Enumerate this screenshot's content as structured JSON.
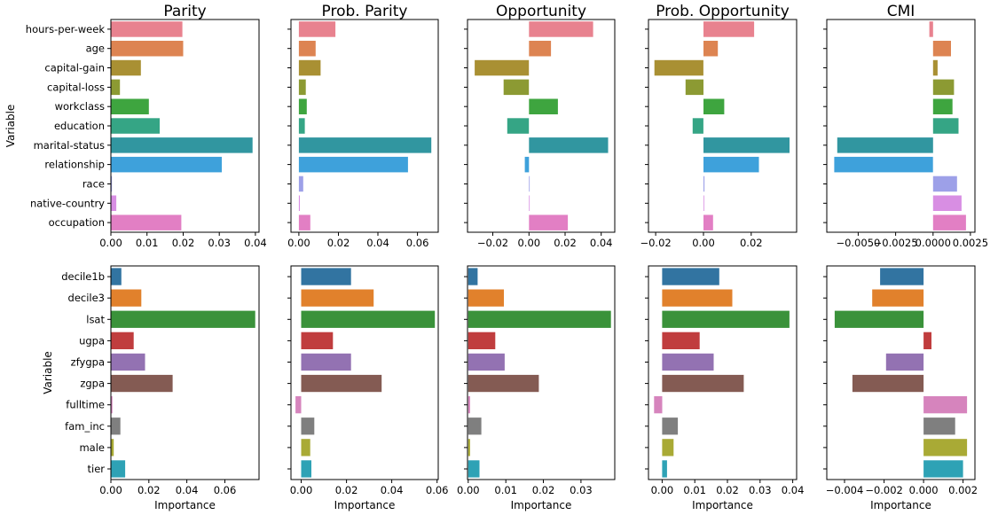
{
  "chart_data": [
    {
      "type": "bar",
      "orientation": "horizontal",
      "title": "Parity",
      "xlabel": "",
      "ylabel": "Variable",
      "categories": [
        "hours-per-week",
        "age",
        "capital-gain",
        "capital-loss",
        "workclass",
        "education",
        "marital-status",
        "relationship",
        "race",
        "native-country",
        "occupation"
      ],
      "values": [
        0.0198,
        0.02,
        0.0083,
        0.0025,
        0.0105,
        0.0135,
        0.0392,
        0.0307,
        0.0003,
        0.0015,
        0.0195
      ],
      "colors": [
        "#e8828f",
        "#dd8452",
        "#a99033",
        "#8c9a33",
        "#3ea53f",
        "#35a585",
        "#3196a0",
        "#3ea1db",
        "#9da0e8",
        "#d88ee3",
        "#e27fc4"
      ],
      "xlim": [
        0,
        0.041
      ],
      "xticks": [
        0,
        0.01,
        0.02,
        0.03,
        0.04
      ],
      "xticklabels": [
        "0.00",
        "0.01",
        "0.02",
        "0.03",
        "0.04"
      ]
    },
    {
      "type": "bar",
      "orientation": "horizontal",
      "title": "Prob. Parity",
      "xlabel": "",
      "ylabel": "",
      "categories": [
        "hours-per-week",
        "age",
        "capital-gain",
        "capital-loss",
        "workclass",
        "education",
        "marital-status",
        "relationship",
        "race",
        "native-country",
        "occupation"
      ],
      "values": [
        0.0185,
        0.0085,
        0.011,
        0.0035,
        0.004,
        0.003,
        0.067,
        0.0552,
        0.0022,
        0.0005,
        0.0058
      ],
      "colors": [
        "#e8828f",
        "#dd8452",
        "#a99033",
        "#8c9a33",
        "#3ea53f",
        "#35a585",
        "#3196a0",
        "#3ea1db",
        "#9da0e8",
        "#d88ee3",
        "#e27fc4"
      ],
      "xlim": [
        -0.004,
        0.0705
      ],
      "xticks": [
        0,
        0.02,
        0.04,
        0.06
      ],
      "xticklabels": [
        "0.00",
        "0.02",
        "0.04",
        "0.06"
      ]
    },
    {
      "type": "bar",
      "orientation": "horizontal",
      "title": "Opportunity",
      "xlabel": "",
      "ylabel": "",
      "categories": [
        "hours-per-week",
        "age",
        "capital-gain",
        "capital-loss",
        "workclass",
        "education",
        "marital-status",
        "relationship",
        "race",
        "native-country",
        "occupation"
      ],
      "values": [
        0.0355,
        0.0122,
        -0.03,
        -0.014,
        0.016,
        -0.012,
        0.0438,
        -0.0023,
        0.0,
        0.0,
        0.0215
      ],
      "colors": [
        "#e8828f",
        "#dd8452",
        "#a99033",
        "#8c9a33",
        "#3ea53f",
        "#35a585",
        "#3196a0",
        "#3ea1db",
        "#9da0e8",
        "#d88ee3",
        "#e27fc4"
      ],
      "xlim": [
        -0.034,
        0.0475
      ],
      "xticks": [
        -0.02,
        0,
        0.02,
        0.04
      ],
      "xticklabels": [
        "−0.02",
        "0.00",
        "0.02",
        "0.04"
      ]
    },
    {
      "type": "bar",
      "orientation": "horizontal",
      "title": "Prob. Opportunity",
      "xlabel": "",
      "ylabel": "",
      "categories": [
        "hours-per-week",
        "age",
        "capital-gain",
        "capital-loss",
        "workclass",
        "education",
        "marital-status",
        "relationship",
        "race",
        "native-country",
        "occupation"
      ],
      "values": [
        0.0212,
        0.006,
        -0.0205,
        -0.0075,
        0.0087,
        -0.0045,
        0.036,
        0.0232,
        0.0004,
        0.0,
        0.004
      ],
      "colors": [
        "#e8828f",
        "#dd8452",
        "#a99033",
        "#8c9a33",
        "#3ea53f",
        "#35a585",
        "#3196a0",
        "#3ea1db",
        "#9da0e8",
        "#d88ee3",
        "#e27fc4"
      ],
      "xlim": [
        -0.023,
        0.039
      ],
      "xticks": [
        -0.02,
        0,
        0.02
      ],
      "xticklabels": [
        "−0.02",
        "0.00",
        "0.02"
      ]
    },
    {
      "type": "bar",
      "orientation": "horizontal",
      "title": "CMI",
      "xlabel": "",
      "ylabel": "",
      "categories": [
        "hours-per-week",
        "age",
        "capital-gain",
        "capital-loss",
        "workclass",
        "education",
        "marital-status",
        "relationship",
        "race",
        "native-country",
        "occupation"
      ],
      "values": [
        -0.00025,
        0.0012,
        0.0003,
        0.0014,
        0.0013,
        0.0017,
        -0.0064,
        -0.0066,
        0.0016,
        0.0019,
        0.0022
      ],
      "colors": [
        "#e8828f",
        "#dd8452",
        "#a99033",
        "#8c9a33",
        "#3ea53f",
        "#35a585",
        "#3196a0",
        "#3ea1db",
        "#9da0e8",
        "#d88ee3",
        "#e27fc4"
      ],
      "xlim": [
        -0.0071,
        0.0028
      ],
      "xticks": [
        -0.005,
        -0.0025,
        0,
        0.0025
      ],
      "xticklabels": [
        "−0.0050",
        "−0.0025",
        "0.0000",
        "0.0025"
      ]
    },
    {
      "type": "bar",
      "orientation": "horizontal",
      "title": "",
      "xlabel": "Importance",
      "ylabel": "Variable",
      "categories": [
        "decile1b",
        "decile3",
        "lsat",
        "ugpa",
        "zfygpa",
        "zgpa",
        "fulltime",
        "fam_inc",
        "male",
        "tier"
      ],
      "values": [
        0.0055,
        0.016,
        0.076,
        0.012,
        0.018,
        0.0325,
        0.0008,
        0.005,
        0.0015,
        0.0075
      ],
      "colors": [
        "#3274a1",
        "#e1812c",
        "#3a923a",
        "#c03d3e",
        "#9372b2",
        "#845b53",
        "#d684bd",
        "#7f7f7f",
        "#a9aa35",
        "#2ea2b5"
      ],
      "xlim": [
        0,
        0.078
      ],
      "xticks": [
        0,
        0.02,
        0.04,
        0.06
      ],
      "xticklabels": [
        "0.00",
        "0.02",
        "0.04",
        "0.06"
      ]
    },
    {
      "type": "bar",
      "orientation": "horizontal",
      "title": "",
      "xlabel": "Importance",
      "ylabel": "",
      "categories": [
        "decile1b",
        "decile3",
        "lsat",
        "ugpa",
        "zfygpa",
        "zgpa",
        "fulltime",
        "fam_inc",
        "male",
        "tier"
      ],
      "values": [
        0.022,
        0.032,
        0.059,
        0.014,
        0.022,
        0.0355,
        -0.0025,
        0.0058,
        0.004,
        0.0045
      ],
      "colors": [
        "#3274a1",
        "#e1812c",
        "#3a923a",
        "#c03d3e",
        "#9372b2",
        "#845b53",
        "#d684bd",
        "#7f7f7f",
        "#a9aa35",
        "#2ea2b5"
      ],
      "xlim": [
        -0.0045,
        0.0605
      ],
      "xticks": [
        0,
        0.02,
        0.04,
        0.06
      ],
      "xticklabels": [
        "0.00",
        "0.02",
        "0.04",
        "0.06"
      ]
    },
    {
      "type": "bar",
      "orientation": "horizontal",
      "title": "",
      "xlabel": "Importance",
      "ylabel": "",
      "categories": [
        "decile1b",
        "decile3",
        "lsat",
        "ugpa",
        "zfygpa",
        "zgpa",
        "fulltime",
        "fam_inc",
        "male",
        "tier"
      ],
      "values": [
        0.0025,
        0.0095,
        0.038,
        0.0072,
        0.0097,
        0.0188,
        0.0005,
        0.0035,
        0.0005,
        0.003
      ],
      "colors": [
        "#3274a1",
        "#e1812c",
        "#3a923a",
        "#c03d3e",
        "#9372b2",
        "#845b53",
        "#d684bd",
        "#7f7f7f",
        "#a9aa35",
        "#2ea2b5"
      ],
      "xlim": [
        -0.0002,
        0.039
      ],
      "xticks": [
        0,
        0.01,
        0.02,
        0.03
      ],
      "xticklabels": [
        "0.00",
        "0.01",
        "0.02",
        "0.03"
      ]
    },
    {
      "type": "bar",
      "orientation": "horizontal",
      "title": "",
      "xlabel": "Importance",
      "ylabel": "",
      "categories": [
        "decile1b",
        "decile3",
        "lsat",
        "ugpa",
        "zfygpa",
        "zgpa",
        "fulltime",
        "fam_inc",
        "male",
        "tier"
      ],
      "values": [
        0.0175,
        0.0215,
        0.039,
        0.0115,
        0.0158,
        0.025,
        -0.0025,
        0.0048,
        0.0035,
        0.0015
      ],
      "colors": [
        "#3274a1",
        "#e1812c",
        "#3a923a",
        "#c03d3e",
        "#9372b2",
        "#845b53",
        "#d684bd",
        "#7f7f7f",
        "#a9aa35",
        "#2ea2b5"
      ],
      "xlim": [
        -0.0042,
        0.0412
      ],
      "xticks": [
        0,
        0.01,
        0.02,
        0.03,
        0.04
      ],
      "xticklabels": [
        "0.00",
        "0.01",
        "0.02",
        "0.03",
        "0.04"
      ]
    },
    {
      "type": "bar",
      "orientation": "horizontal",
      "title": "",
      "xlabel": "Importance",
      "ylabel": "",
      "categories": [
        "decile1b",
        "decile3",
        "lsat",
        "ugpa",
        "zfygpa",
        "zgpa",
        "fulltime",
        "fam_inc",
        "male",
        "tier"
      ],
      "values": [
        -0.0022,
        -0.0026,
        -0.0045,
        0.0004,
        -0.0019,
        -0.0036,
        0.0022,
        0.0016,
        0.0022,
        0.002
      ],
      "colors": [
        "#3274a1",
        "#e1812c",
        "#3a923a",
        "#c03d3e",
        "#9372b2",
        "#845b53",
        "#d684bd",
        "#7f7f7f",
        "#a9aa35",
        "#2ea2b5"
      ],
      "xlim": [
        -0.0049,
        0.0026
      ],
      "xticks": [
        -0.004,
        -0.002,
        0,
        0.002
      ],
      "xticklabels": [
        "−0.004",
        "−0.002",
        "0.000",
        "0.002"
      ]
    }
  ]
}
